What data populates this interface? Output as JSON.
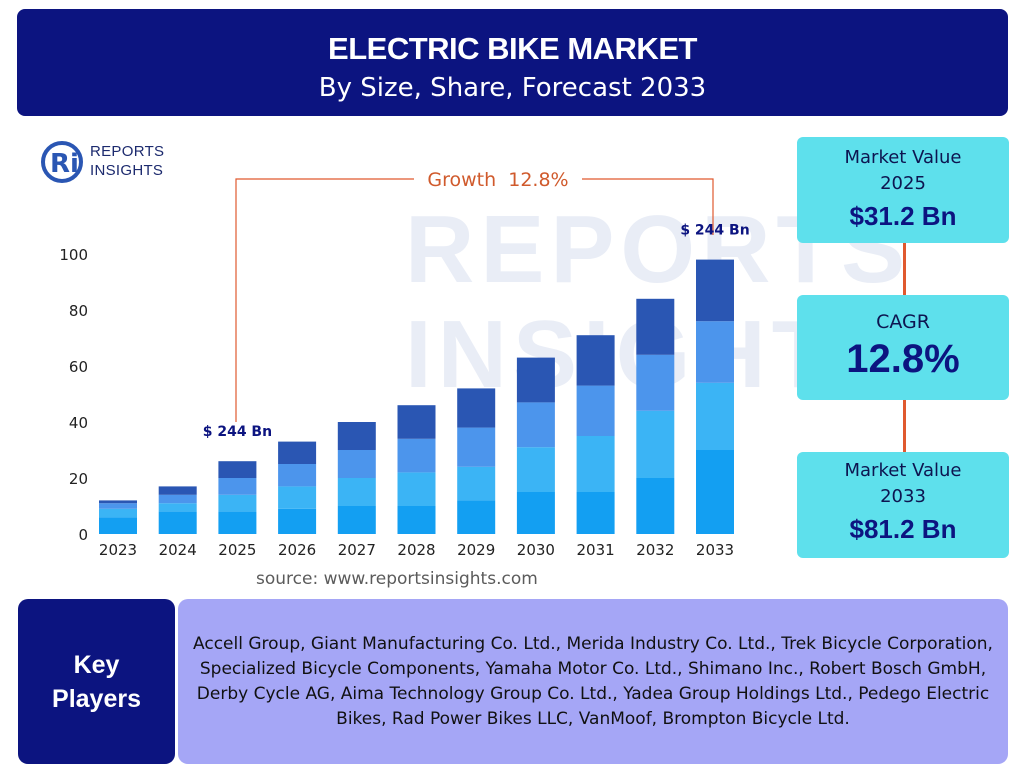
{
  "header": {
    "title": "ELECTRIC BIKE MARKET",
    "subtitle": "By Size, Share, Forecast 2033"
  },
  "logo": {
    "line1": "REPORTS",
    "line2": "INSIGHTS",
    "mark_letters": "Ri"
  },
  "watermark": {
    "line1": "REPORTS",
    "line2": "INSIGHTS"
  },
  "growth_label": "Growth  12.8%",
  "stats": {
    "market_2025": {
      "label": "Market Value",
      "year": "2025",
      "value": "$31.2 Bn"
    },
    "cagr": {
      "label": "CAGR",
      "value": "12.8%"
    },
    "market_2033": {
      "label": "Market Value",
      "year": "2033",
      "value": "$81.2 Bn"
    }
  },
  "source": "source: www.reportsinsights.com",
  "key_players": {
    "label_line1": "Key",
    "label_line2": "Players",
    "text": "Accell Group, Giant Manufacturing Co. Ltd., Merida Industry Co. Ltd., Trek Bicycle Corporation, Specialized Bicycle Components, Yamaha Motor Co. Ltd., Shimano Inc., Robert Bosch GmbH, Derby Cycle AG, Aima Technology Group Co. Ltd., Yadea Group Holdings Ltd., Pedego Electric Bikes, Rad Power Bikes LLC, VanMoof, Brompton Bicycle Ltd."
  },
  "colors": {
    "navy": "#0c1480",
    "cyan": "#5ee0ec",
    "connector": "#e0592f",
    "key_box": "#a5a6f6",
    "segments": [
      "#139ff2",
      "#3bb4f5",
      "#4c95ec",
      "#2a56b3"
    ]
  },
  "chart_data": {
    "type": "bar",
    "stacked": true,
    "categories": [
      "2023",
      "2024",
      "2025",
      "2026",
      "2027",
      "2028",
      "2029",
      "2030",
      "2031",
      "2032",
      "2033"
    ],
    "series": [
      {
        "values": [
          6,
          8,
          8,
          9,
          10,
          10,
          12,
          15,
          15,
          20,
          30
        ]
      },
      {
        "values": [
          3,
          3,
          6,
          8,
          10,
          12,
          12,
          16,
          20,
          24,
          24
        ]
      },
      {
        "values": [
          2,
          3,
          6,
          8,
          10,
          12,
          14,
          16,
          18,
          20,
          22
        ]
      },
      {
        "values": [
          1,
          3,
          6,
          8,
          10,
          12,
          14,
          16,
          18,
          20,
          22
        ]
      }
    ],
    "yticks": [
      0,
      20,
      40,
      60,
      80,
      100
    ],
    "ylim": [
      0,
      100
    ],
    "annotations": [
      {
        "category": "2025",
        "text": "$ 244 Bn"
      },
      {
        "category": "2033",
        "text": "$ 244 Bn"
      }
    ],
    "grid": false
  }
}
